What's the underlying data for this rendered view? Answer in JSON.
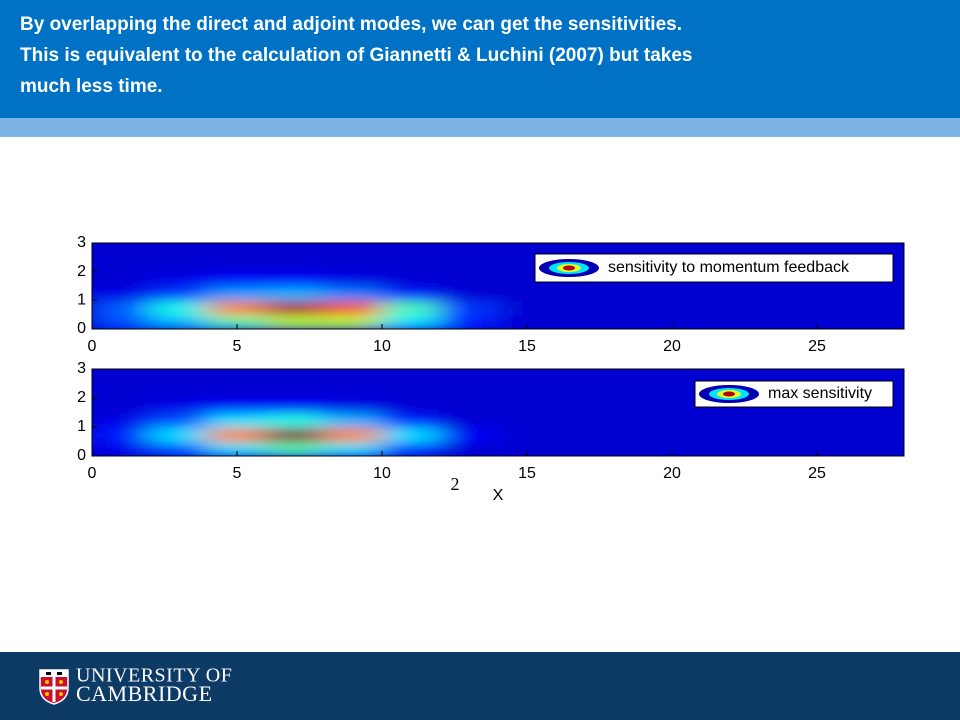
{
  "header": {
    "lines": [
      "By overlapping the direct and adjoint modes, we can get the sensitivities.",
      "This is equivalent to the calculation of Giannetti & Luchini (2007) but takes",
      "much less time."
    ]
  },
  "chart_data": [
    {
      "type": "heatmap",
      "colormap": "jet",
      "legend": "sensitivity to momentum feedback",
      "x": [
        1,
        3,
        5,
        7,
        9,
        11,
        13,
        15,
        17,
        19,
        21,
        23,
        25,
        27
      ],
      "y": [
        0.25,
        0.75,
        1.25,
        1.75,
        2.25,
        2.75
      ],
      "z": [
        [
          0.2,
          0.3,
          0.45,
          0.55,
          0.55,
          0.35,
          0.15,
          0.08,
          0.08,
          0.08,
          0.08,
          0.08,
          0.08,
          0.08
        ],
        [
          0.22,
          0.4,
          0.75,
          0.95,
          0.8,
          0.45,
          0.18,
          0.08,
          0.08,
          0.08,
          0.08,
          0.08,
          0.08,
          0.08
        ],
        [
          0.1,
          0.18,
          0.28,
          0.3,
          0.25,
          0.15,
          0.08,
          0.08,
          0.08,
          0.08,
          0.08,
          0.08,
          0.08,
          0.08
        ],
        [
          0.08,
          0.1,
          0.12,
          0.12,
          0.1,
          0.08,
          0.08,
          0.08,
          0.08,
          0.08,
          0.08,
          0.08,
          0.08,
          0.08
        ],
        [
          0.08,
          0.08,
          0.08,
          0.08,
          0.08,
          0.08,
          0.08,
          0.08,
          0.08,
          0.08,
          0.08,
          0.08,
          0.08,
          0.08
        ],
        [
          0.08,
          0.08,
          0.08,
          0.08,
          0.08,
          0.08,
          0.08,
          0.08,
          0.08,
          0.08,
          0.08,
          0.08,
          0.08,
          0.08
        ]
      ],
      "xlim": [
        0,
        28
      ],
      "ylim": [
        0,
        3
      ],
      "xticks": [
        0,
        5,
        10,
        15,
        20,
        25
      ],
      "yticks": [
        0,
        1,
        2,
        3
      ]
    },
    {
      "type": "heatmap",
      "colormap": "jet",
      "legend": "max sensitivity",
      "xlabel": "X",
      "annotation": "2",
      "x": [
        1,
        3,
        5,
        7,
        9,
        11,
        13,
        15,
        17,
        19,
        21,
        23,
        25,
        27
      ],
      "y": [
        0.25,
        0.75,
        1.25,
        1.75,
        2.25,
        2.75
      ],
      "z": [
        [
          0.1,
          0.2,
          0.35,
          0.45,
          0.35,
          0.18,
          0.08,
          0.08,
          0.08,
          0.08,
          0.08,
          0.08,
          0.08,
          0.08
        ],
        [
          0.15,
          0.35,
          0.75,
          1.0,
          0.75,
          0.35,
          0.12,
          0.08,
          0.08,
          0.08,
          0.08,
          0.08,
          0.08,
          0.08
        ],
        [
          0.1,
          0.2,
          0.35,
          0.4,
          0.3,
          0.15,
          0.08,
          0.08,
          0.08,
          0.08,
          0.08,
          0.08,
          0.08,
          0.08
        ],
        [
          0.08,
          0.1,
          0.12,
          0.12,
          0.1,
          0.08,
          0.08,
          0.08,
          0.08,
          0.08,
          0.08,
          0.08,
          0.08,
          0.08
        ],
        [
          0.08,
          0.08,
          0.08,
          0.08,
          0.08,
          0.08,
          0.08,
          0.08,
          0.08,
          0.08,
          0.08,
          0.08,
          0.08,
          0.08
        ],
        [
          0.08,
          0.08,
          0.08,
          0.08,
          0.08,
          0.08,
          0.08,
          0.08,
          0.08,
          0.08,
          0.08,
          0.08,
          0.08,
          0.08
        ]
      ],
      "xlim": [
        0,
        28
      ],
      "ylim": [
        0,
        3
      ],
      "xticks": [
        0,
        5,
        10,
        15,
        20,
        25
      ],
      "yticks": [
        0,
        1,
        2,
        3
      ]
    }
  ],
  "footer": {
    "lines": [
      "UNIVERSITY OF",
      "CAMBRIDGE"
    ]
  }
}
